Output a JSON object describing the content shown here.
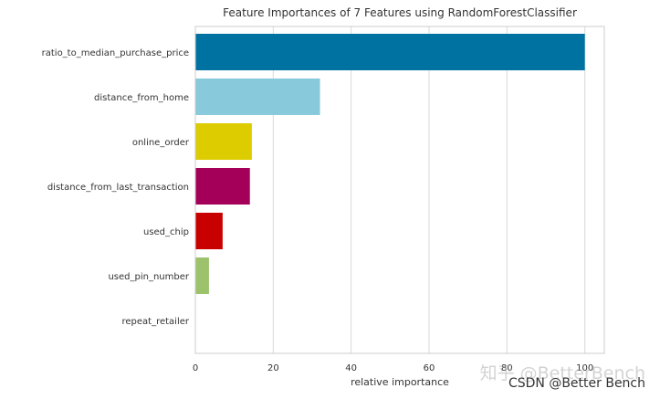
{
  "chart_data": {
    "type": "bar",
    "orientation": "horizontal",
    "title": "Feature Importances of 7 Features using RandomForestClassifier",
    "xlabel": "relative importance",
    "ylabel": "",
    "xlim": [
      0,
      105
    ],
    "xticks": [
      "0",
      "20",
      "40",
      "60",
      "80",
      "100"
    ],
    "grid": true,
    "categories": [
      "ratio_to_median_purchase_price",
      "distance_from_home",
      "online_order",
      "distance_from_last_transaction",
      "used_chip",
      "used_pin_number",
      "repeat_retailer"
    ],
    "values": [
      100,
      32,
      14.5,
      14,
      7,
      3.5,
      0
    ],
    "colors": [
      "#0072a2",
      "#89c9dc",
      "#dccc00",
      "#a4005a",
      "#c90000",
      "#9cc26c",
      "#4c72b0"
    ]
  },
  "watermark": {
    "main": "知乎 @BetterBench",
    "sub": "CSDN @Better Bench"
  }
}
